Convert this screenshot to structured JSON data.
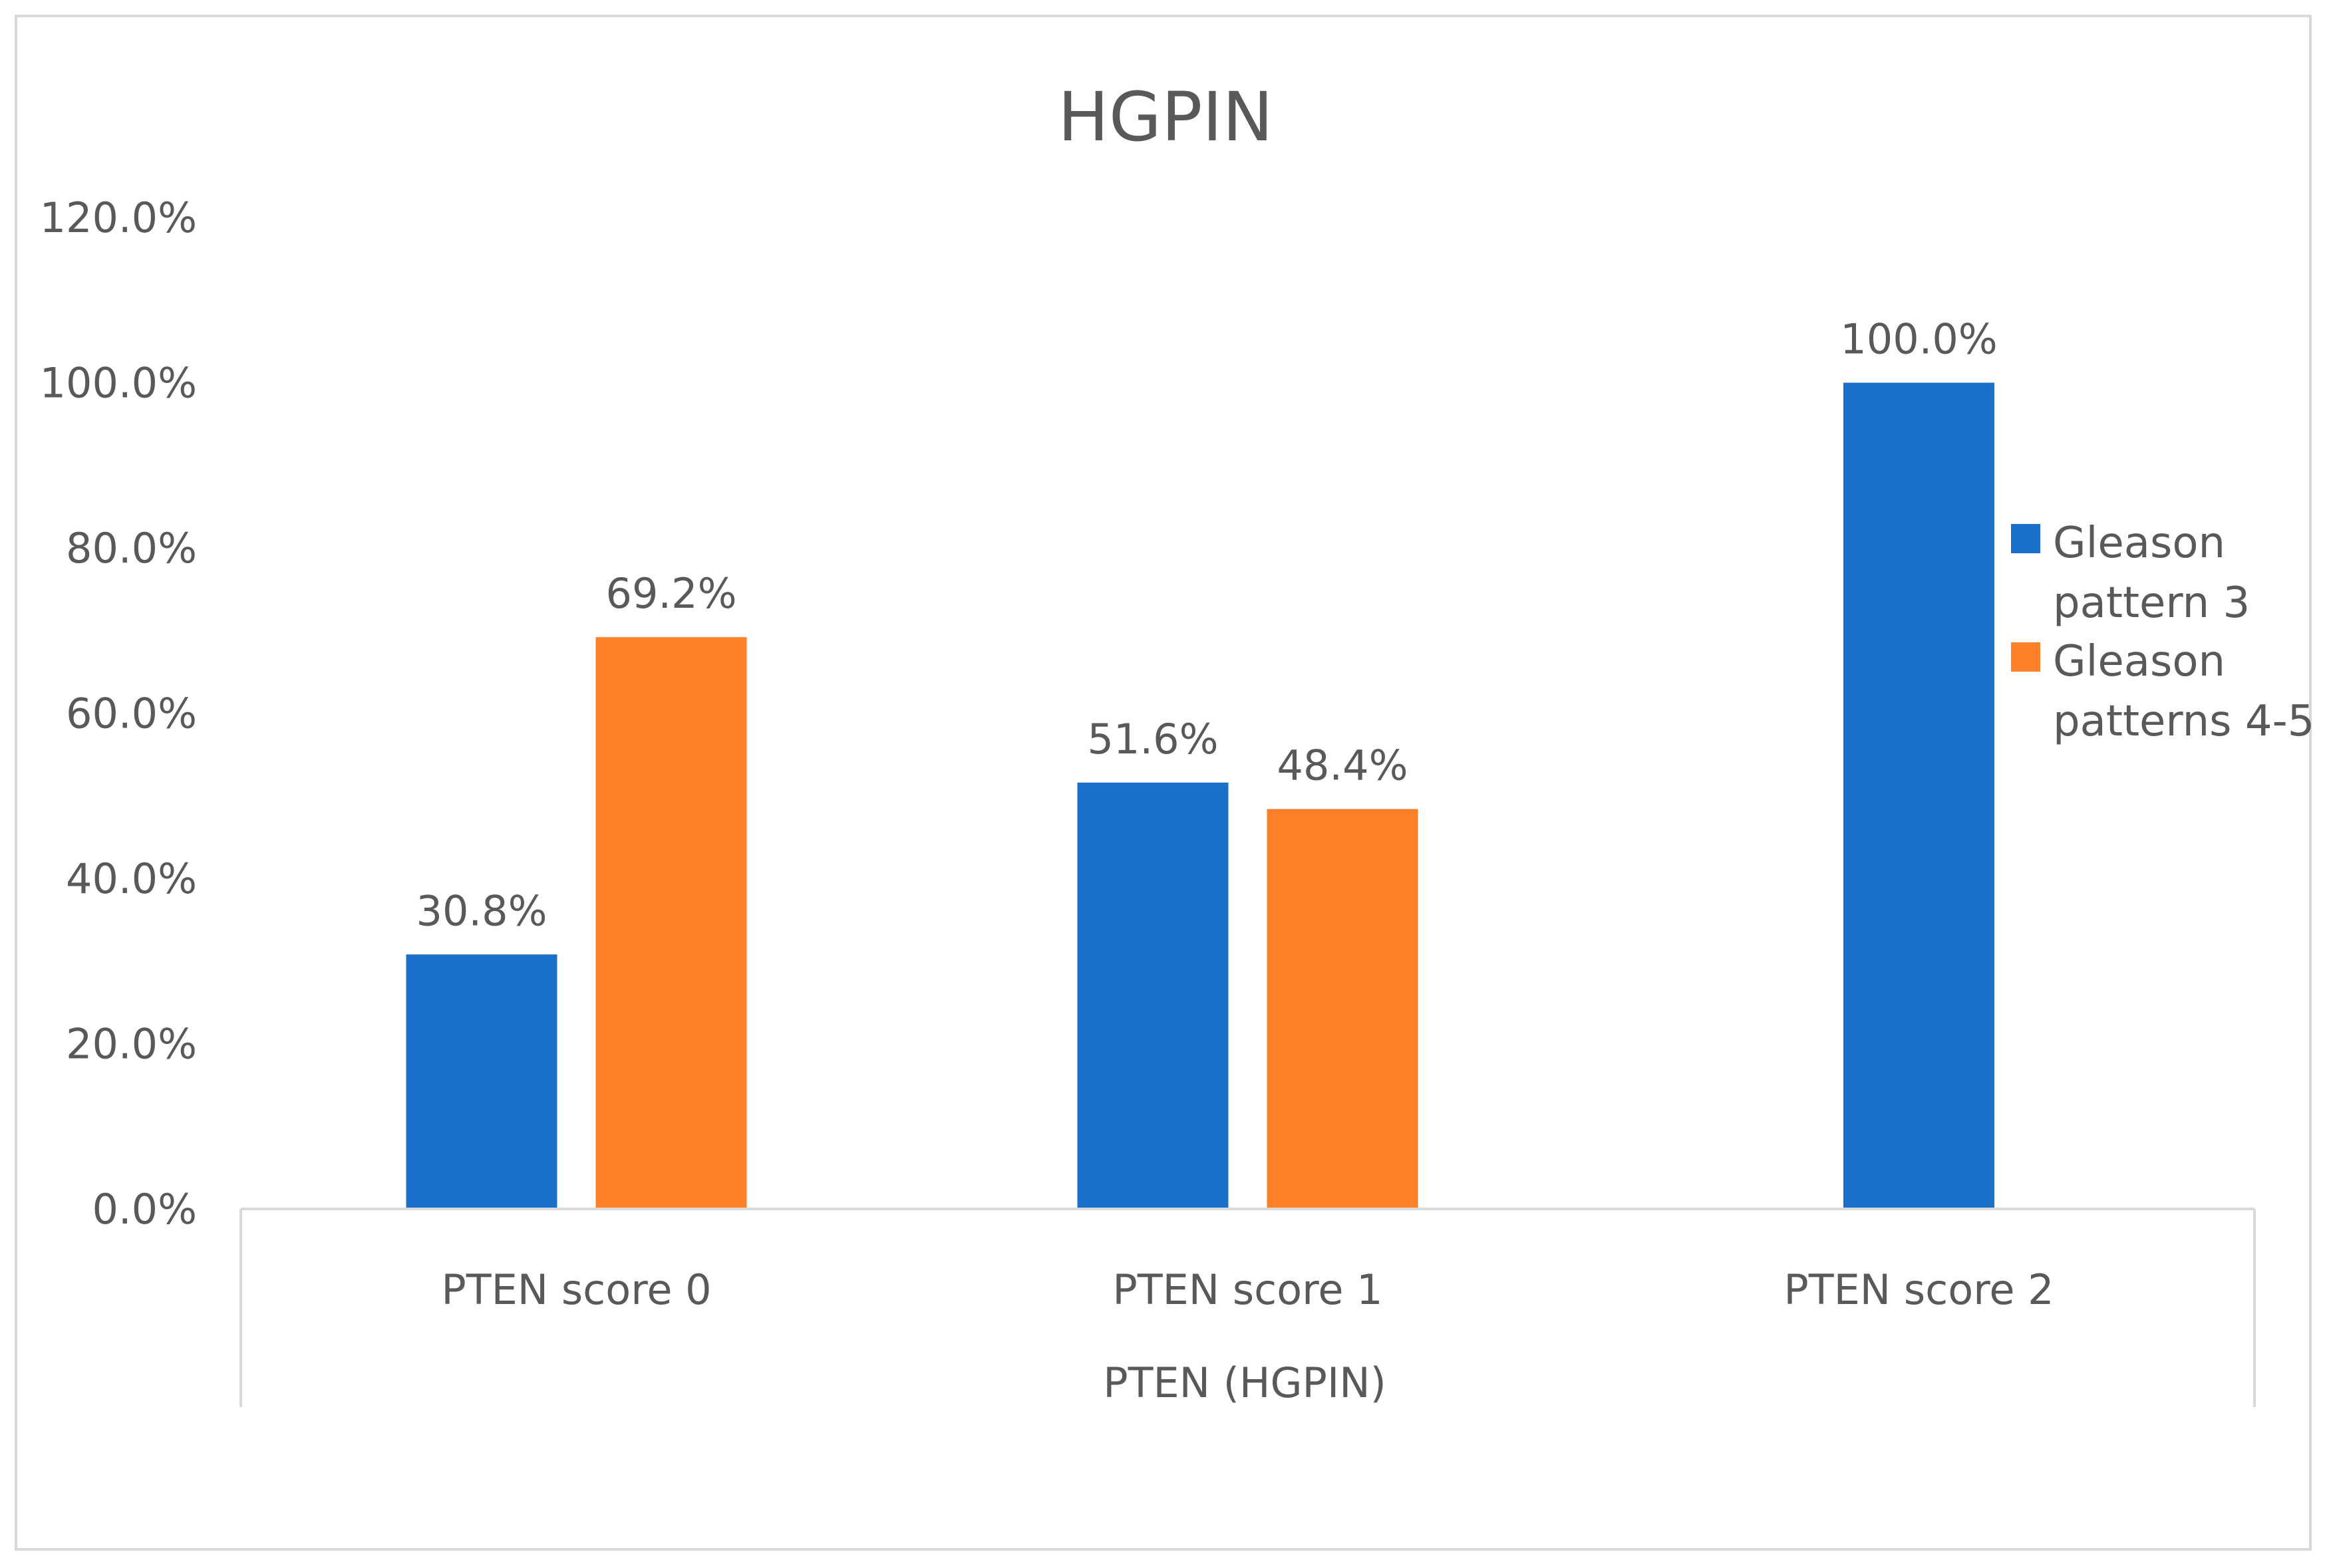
{
  "chart_data": {
    "type": "bar",
    "title": "HGPIN",
    "xlabel": "PTEN (HGPIN)",
    "ylabel": "",
    "categories": [
      "PTEN score 0",
      "PTEN score 1",
      "PTEN score 2"
    ],
    "series": [
      {
        "name": "Gleason pattern 3",
        "color": "#1a70c8",
        "values": [
          30.8,
          51.6,
          100.0
        ],
        "labels": [
          "30.8%",
          "51.6%",
          "100.0%"
        ]
      },
      {
        "name": "Gleason patterns 4-5",
        "color": "#fd7f27",
        "values": [
          69.2,
          48.4,
          null
        ],
        "labels": [
          "69.2%",
          "48.4%",
          ""
        ]
      }
    ],
    "ylim": [
      0,
      120
    ],
    "yticks": [
      0,
      20,
      40,
      60,
      80,
      100,
      120
    ],
    "ytick_labels": [
      "0.0%",
      "20.0%",
      "40.0%",
      "60.0%",
      "80.0%",
      "100.0%",
      "120.0%"
    ],
    "grid": false,
    "legend_position": "right"
  },
  "legend_items": [
    {
      "line1": "Gleason",
      "line2": "pattern 3",
      "color": "#1a70c8"
    },
    {
      "line1": "Gleason",
      "line2": "patterns 4-5",
      "color": "#fd7f27"
    }
  ]
}
